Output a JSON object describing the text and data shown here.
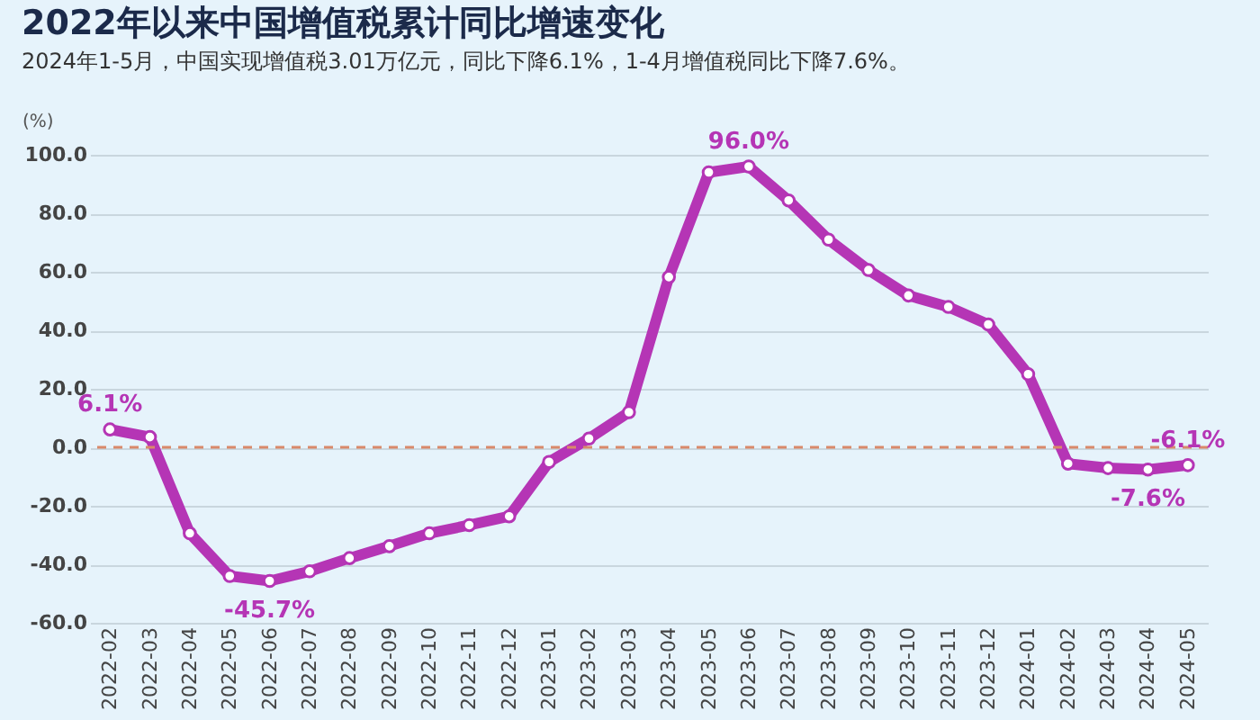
{
  "chart_data": {
    "type": "line",
    "title": "2022年以来中国增值税累计同比增速变化",
    "subtitle": "2024年1-5月，中国实现增值税3.01万亿元，同比下降6.1%，1-4月增值税同比下降7.6%。",
    "ylabel": "(%)",
    "categories": [
      "2022-02",
      "2022-03",
      "2022-04",
      "2022-05",
      "2022-06",
      "2022-07",
      "2022-08",
      "2022-09",
      "2022-10",
      "2022-11",
      "2022-12",
      "2023-01",
      "2023-02",
      "2023-03",
      "2023-04",
      "2023-05",
      "2023-06",
      "2023-07",
      "2023-08",
      "2023-09",
      "2023-10",
      "2023-11",
      "2023-12",
      "2024-01",
      "2024-02",
      "2024-03",
      "2024-04",
      "2024-05"
    ],
    "series": [
      {
        "color": "#b535b5",
        "values": [
          6.1,
          3.5,
          -29.4,
          -44.0,
          -45.7,
          -42.4,
          -37.9,
          -33.8,
          -29.4,
          -26.6,
          -23.6,
          -5.0,
          3.0,
          12.0,
          58.2,
          94.0,
          96.0,
          84.4,
          71.0,
          60.6,
          51.9,
          48.0,
          42.0,
          25.0,
          -5.6,
          -7.1,
          -7.6,
          -6.1
        ],
        "value_labels": [
          "6.1%",
          null,
          null,
          null,
          "-45.7%",
          null,
          null,
          null,
          null,
          null,
          null,
          null,
          null,
          null,
          null,
          null,
          "96.0%",
          null,
          null,
          null,
          null,
          null,
          null,
          null,
          null,
          null,
          "-7.6%",
          "-6.1%"
        ]
      }
    ],
    "ylim": [
      -60,
      100
    ],
    "yticks": [
      {
        "value": -60,
        "label": "-60.0"
      },
      {
        "value": -40,
        "label": "-40.0"
      },
      {
        "value": -20,
        "label": "-20.0"
      },
      {
        "value": 0,
        "label": "0.0"
      },
      {
        "value": 20,
        "label": "20.0"
      },
      {
        "value": 40,
        "label": "40.0"
      },
      {
        "value": 60,
        "label": "60.0"
      },
      {
        "value": 80,
        "label": "80.0"
      },
      {
        "value": 100,
        "label": "100.0"
      }
    ],
    "ref_lines": [
      {
        "axis": "y",
        "value": 0,
        "color": "#d9896a",
        "line_style": "dashed"
      }
    ],
    "grid": "y",
    "marker": "circle",
    "line_style": "solid"
  }
}
